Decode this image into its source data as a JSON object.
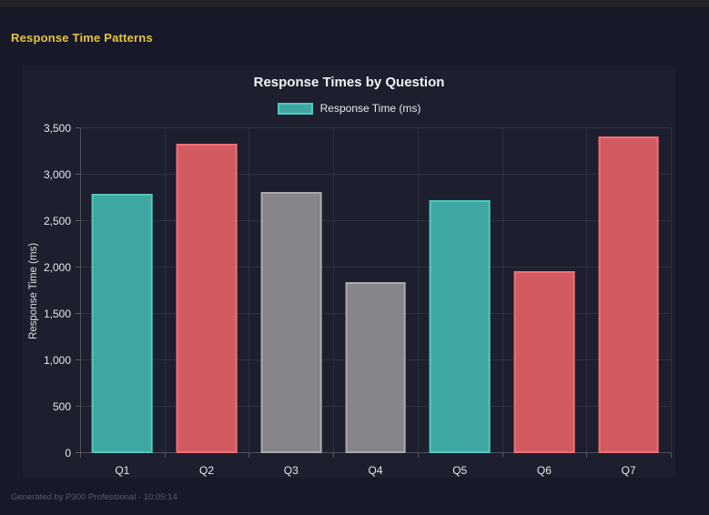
{
  "header": {
    "title": "Response Time Patterns",
    "title_color": "#e6c53d"
  },
  "footer": {
    "text": "Generated by P300 Professional - 10:05:14",
    "text_color": "#565b69"
  },
  "chart_data": {
    "type": "bar",
    "title": "Response Times by Question",
    "legend": [
      {
        "label": "Response Time (ms)",
        "color_key": "teal"
      }
    ],
    "legend_position": "top",
    "categories": [
      "Q1",
      "Q2",
      "Q3",
      "Q4",
      "Q5",
      "Q6",
      "Q7"
    ],
    "values": [
      2795,
      3330,
      2810,
      1845,
      2725,
      1965,
      3410
    ],
    "bar_colors": [
      "teal",
      "red",
      "gray",
      "gray",
      "teal",
      "red",
      "red"
    ],
    "palette": {
      "teal": {
        "fill": "#3fa7a1",
        "border": "#54c7bf"
      },
      "red": {
        "fill": "#d15b60",
        "border": "#ef6f76"
      },
      "gray": {
        "fill": "#85858a",
        "border": "#a9a9ae"
      }
    },
    "xlabel": "",
    "ylabel": "Response Time (ms)",
    "ylim": [
      0,
      3500
    ],
    "ytick_step": 500,
    "ytick_labels": [
      "0",
      "500",
      "1,000",
      "1,500",
      "2,000",
      "2,500",
      "3,000",
      "3,500"
    ],
    "grid": true,
    "background": "#1d1f2e",
    "page_background": "#171929"
  }
}
